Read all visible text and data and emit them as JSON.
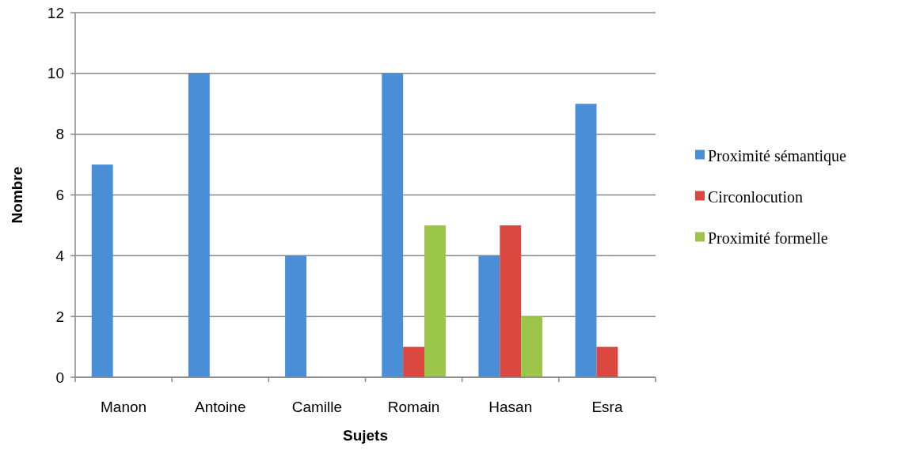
{
  "chart_data": {
    "type": "bar",
    "xlabel": "Sujets",
    "ylabel": "Nombre",
    "categories": [
      "Manon",
      "Antoine",
      "Camille",
      "Romain",
      "Hasan",
      "Esra"
    ],
    "series": [
      {
        "name": "Proximité sémantique",
        "color": "#4a8fd6",
        "values": [
          7,
          10,
          4,
          10,
          4,
          9
        ]
      },
      {
        "name": "Circonlocution",
        "color": "#d9473f",
        "values": [
          0,
          0,
          0,
          1,
          5,
          1
        ]
      },
      {
        "name": "Proximité formelle",
        "color": "#9cc64a",
        "values": [
          0,
          0,
          0,
          5,
          2,
          0
        ]
      }
    ],
    "ylim": [
      0,
      12
    ],
    "yticks": [
      0,
      2,
      4,
      6,
      8,
      10,
      12
    ],
    "grid": "y",
    "legend": "right"
  }
}
